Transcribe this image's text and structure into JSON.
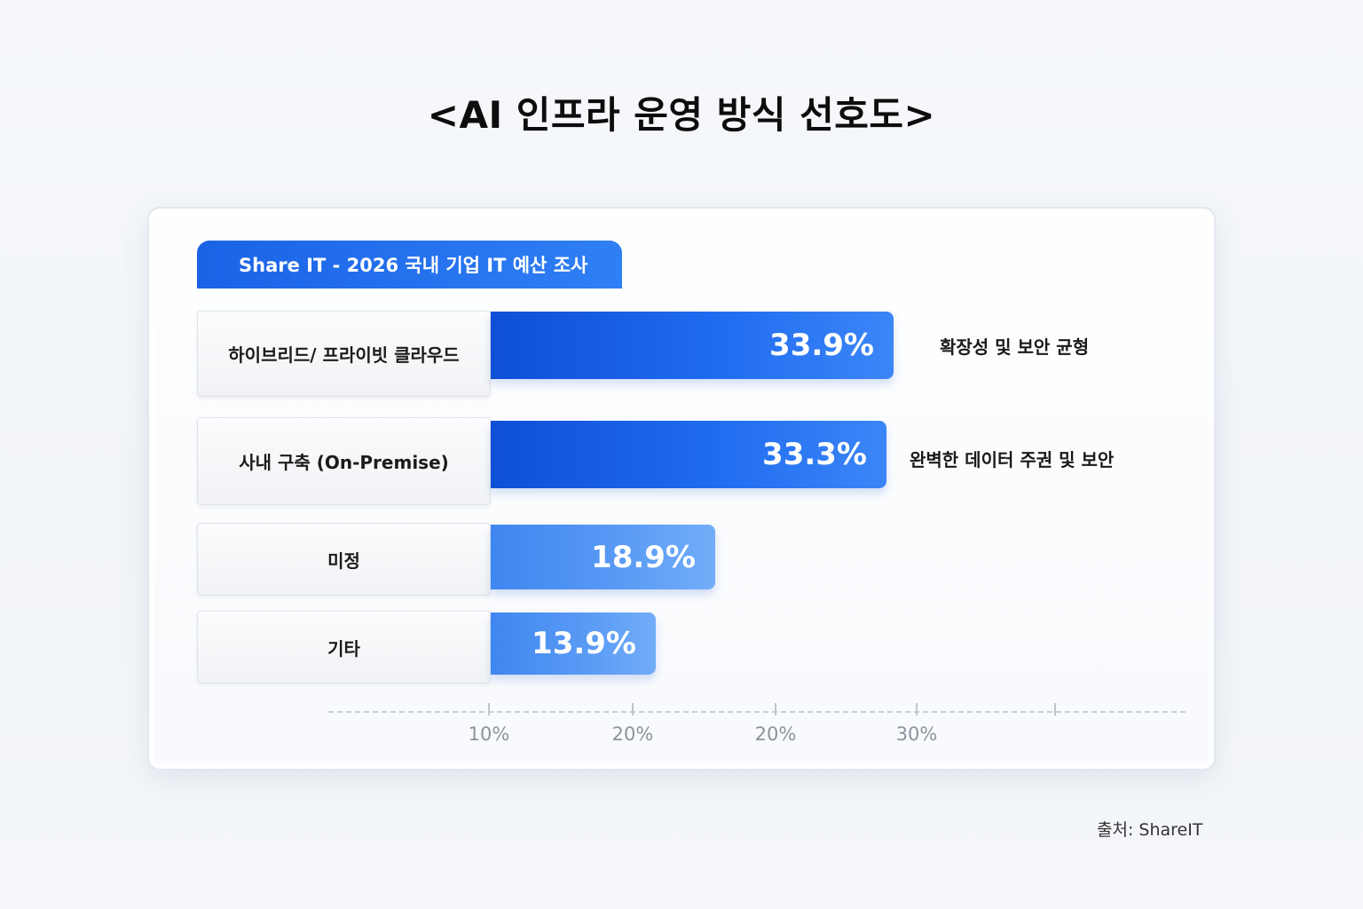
{
  "title": "<AI 인프라 운영 방식 선호도>",
  "source": "출처: ShareIT",
  "colors": {
    "bar_dark": "#1458e0",
    "bar_light": "#4a8ff2",
    "subtitle_bg": "#1f6ae8"
  },
  "chart_data": {
    "type": "bar",
    "orientation": "horizontal",
    "title": "<AI 인프라 운영 방식 선호도>",
    "subtitle": "Share IT - 2026 국내 기업 IT 예산 조사",
    "categories": [
      "하이브리드/ 프라이빗 클라우드",
      "사내 구축 (On-Premise)",
      "미정",
      "기타"
    ],
    "values": [
      33.9,
      33.3,
      18.9,
      13.9
    ],
    "value_labels": [
      "33.9%",
      "33.3%",
      "18.9%",
      "13.9%"
    ],
    "annotations": [
      "확장성 및 보안 균형",
      "완벽한 데이터 주권 및 보안",
      "",
      ""
    ],
    "x_tick_labels": [
      "10%",
      "20%",
      "20%",
      "30%"
    ],
    "grid": false,
    "legend": "none"
  }
}
